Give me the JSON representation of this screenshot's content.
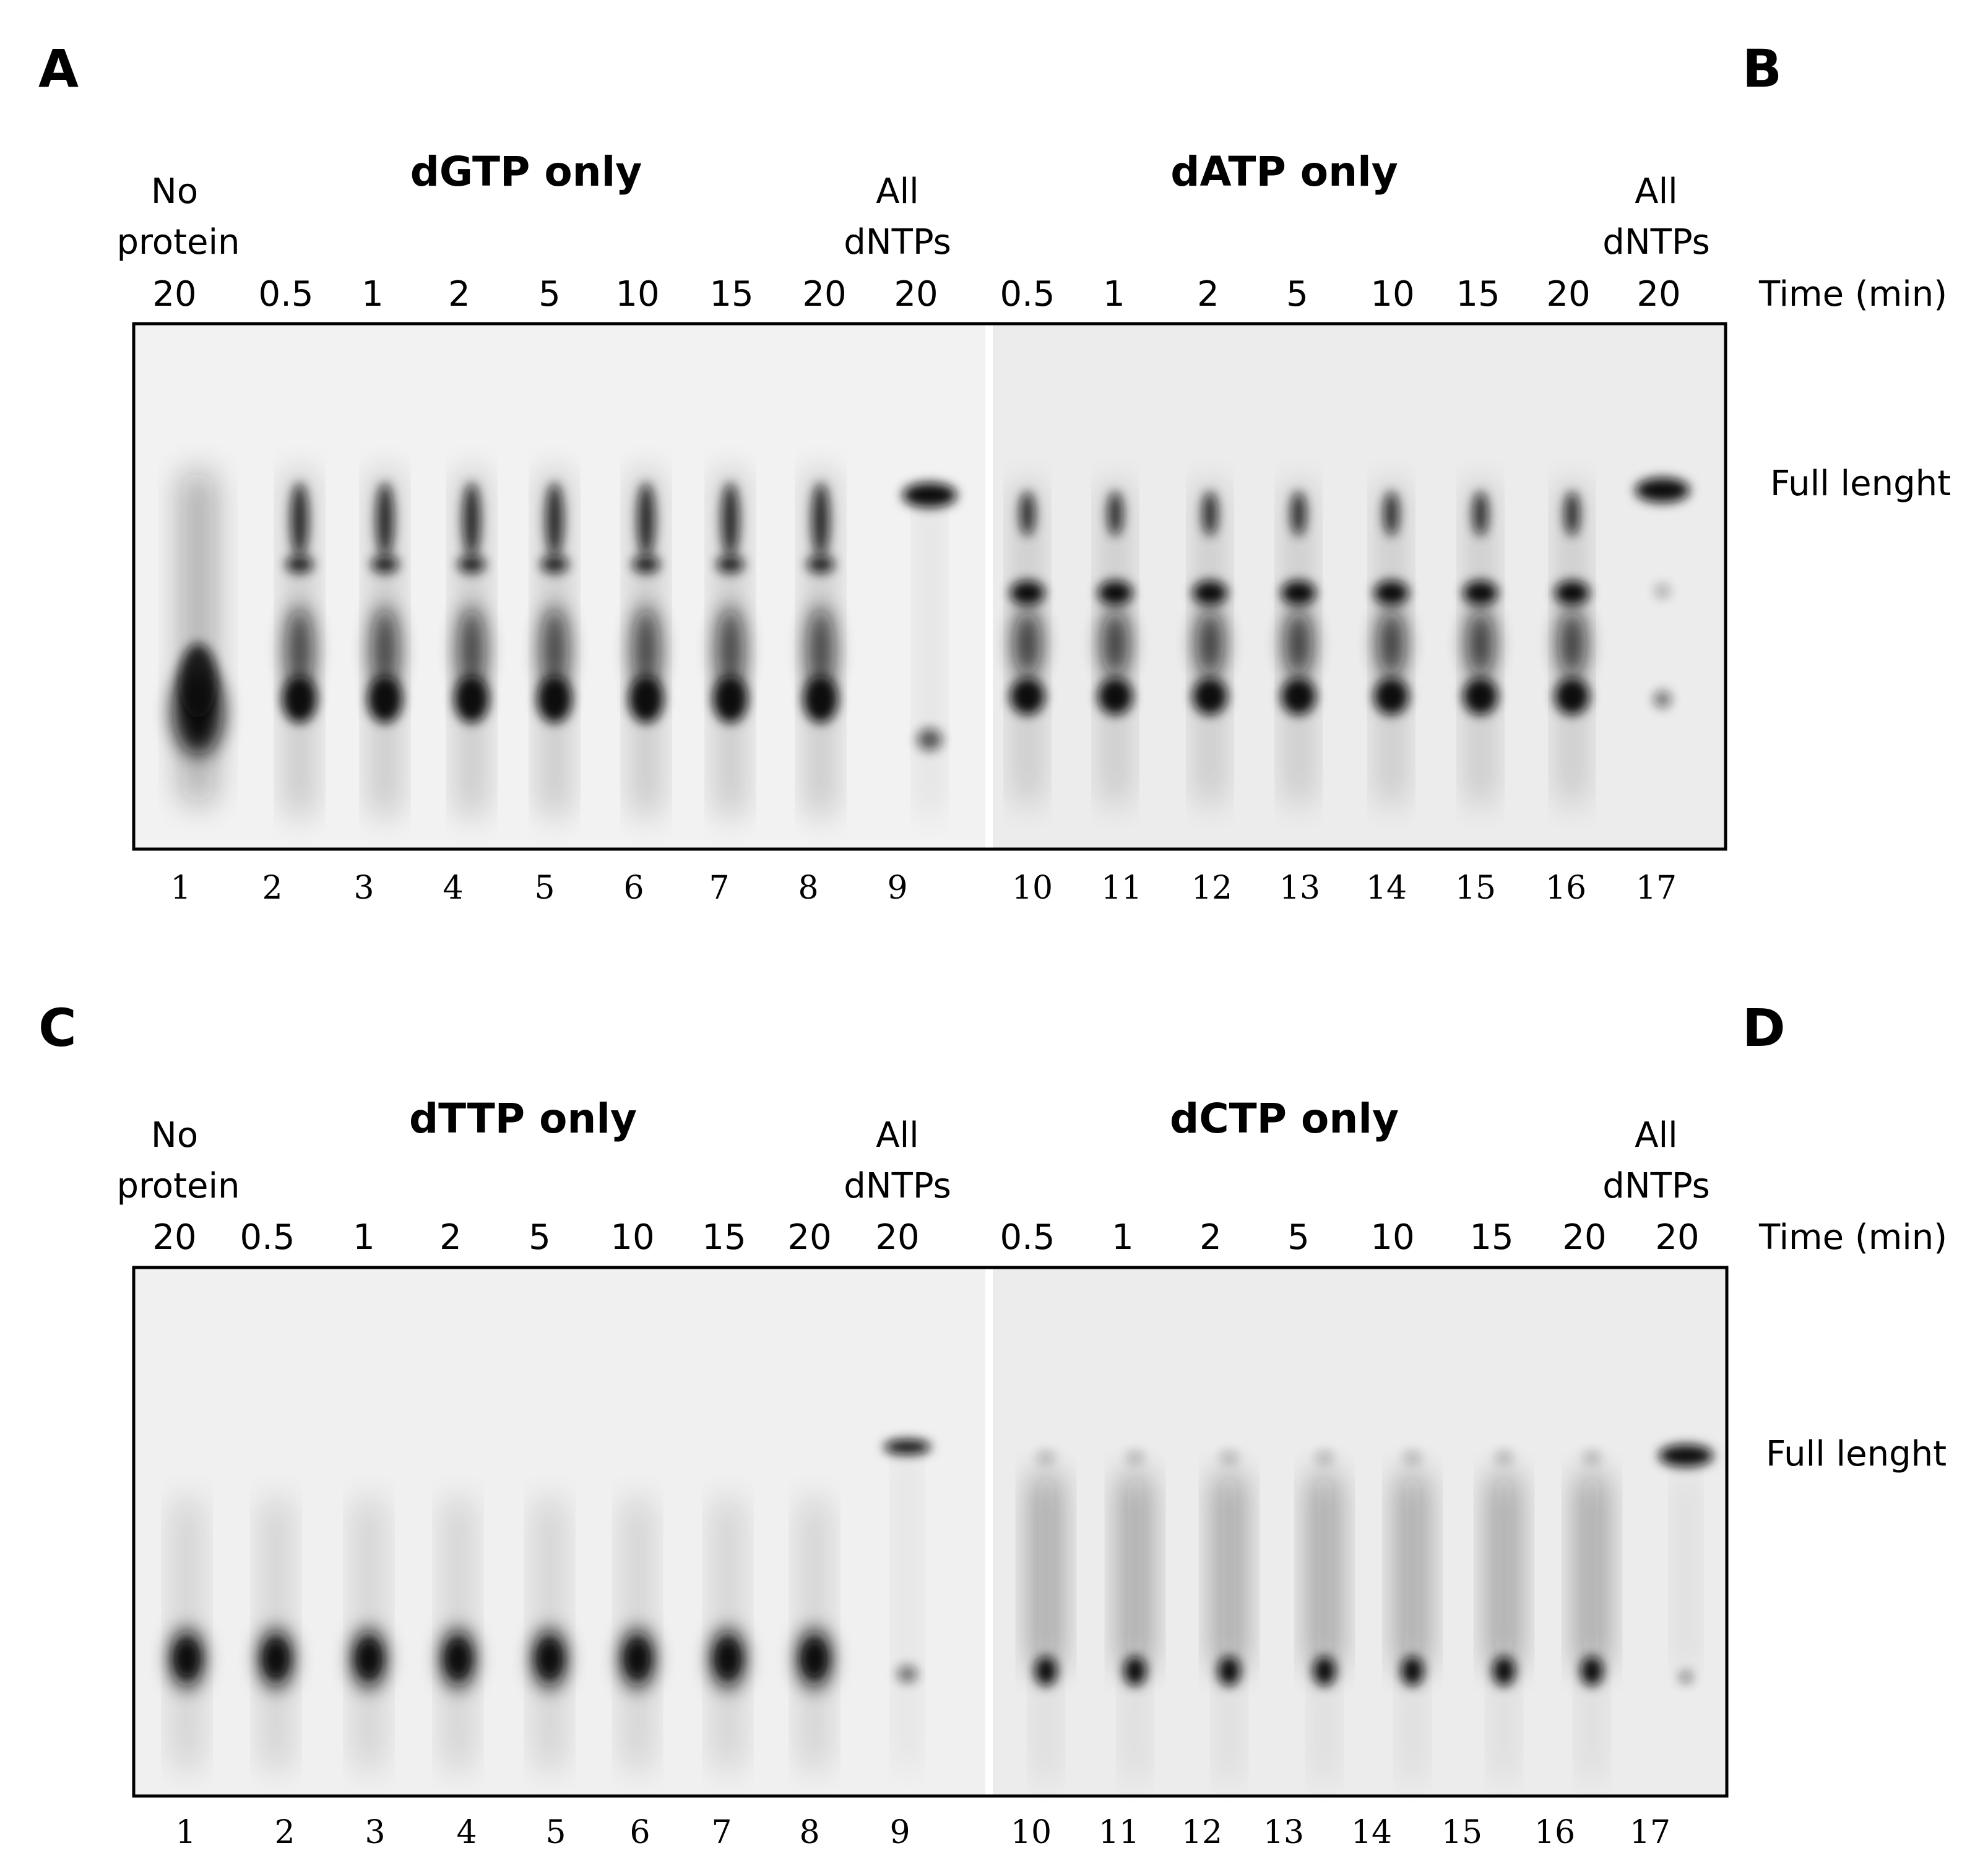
{
  "panel_labels": [
    "A",
    "B",
    "C",
    "D"
  ],
  "time_axis_label": "Time (min)",
  "full_length_label": "Full lenght",
  "top": {
    "gel_left_title": "dGTP only",
    "gel_right_title": "dATP only",
    "no_protein": [
      "No",
      "protein"
    ],
    "all_dntps": [
      "All",
      "dNTPs"
    ],
    "times": [
      "20",
      "0.5",
      "1",
      "2",
      "5",
      "10",
      "15",
      "20",
      "20",
      "0.5",
      "1",
      "2",
      "5",
      "10",
      "15",
      "20",
      "20"
    ],
    "lane_numbers": [
      "1",
      "2",
      "3",
      "4",
      "5",
      "6",
      "7",
      "8",
      "9",
      "10",
      "11",
      "12",
      "13",
      "14",
      "15",
      "16",
      "17"
    ]
  },
  "bottom": {
    "gel_left_title": "dTTP only",
    "gel_right_title": "dCTP only",
    "no_protein": [
      "No",
      "protein"
    ],
    "all_dntps": [
      "All",
      "dNTPs"
    ],
    "times": [
      "20",
      "0.5",
      "1",
      "2",
      "5",
      "10",
      "15",
      "20",
      "20",
      "0.5",
      "1",
      "2",
      "5",
      "10",
      "15",
      "20",
      "20"
    ],
    "lane_numbers": [
      "1",
      "2",
      "3",
      "4",
      "5",
      "6",
      "7",
      "8",
      "9",
      "10",
      "11",
      "12",
      "13",
      "14",
      "15",
      "16",
      "17"
    ]
  },
  "colors": {
    "band": "#0a0a0a",
    "gel_left": "#f2f2f2",
    "gel_right": "#ececec",
    "frame": "#000000"
  }
}
